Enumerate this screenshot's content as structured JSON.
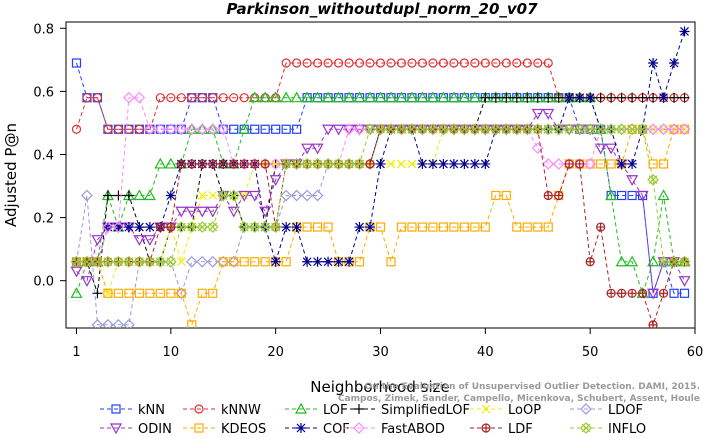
{
  "chart_data": {
    "type": "line",
    "title": "Parkinson_withoutdupl_norm_20_v07",
    "xlabel": "Neighborhood size",
    "ylabel": "Adjusted P@n",
    "xlim": [
      0,
      60
    ],
    "ylim": [
      -0.15,
      0.82
    ],
    "xticks": [
      1,
      10,
      20,
      30,
      40,
      50,
      60
    ],
    "yticks": [
      0.0,
      0.2,
      0.4,
      0.6,
      0.8
    ],
    "grid": false,
    "legend_position": "bottom",
    "watermark": [
      "Campos, Zimek, Sander, Campello, Micenkova, Schubert, Assent, Houle",
      "On the Evaluation of Unsupervised Outlier Detection. DAMI, 2015."
    ],
    "x": [
      1,
      2,
      3,
      4,
      5,
      6,
      7,
      8,
      9,
      10,
      11,
      12,
      13,
      14,
      15,
      16,
      17,
      18,
      19,
      20,
      21,
      22,
      23,
      24,
      25,
      26,
      27,
      28,
      29,
      30,
      31,
      32,
      33,
      34,
      35,
      36,
      37,
      38,
      39,
      40,
      41,
      42,
      43,
      44,
      45,
      46,
      47,
      48,
      49,
      50,
      51,
      52,
      53,
      54,
      55,
      56,
      57,
      58,
      59
    ],
    "series": [
      {
        "name": "kNN",
        "color": "#1f3fff",
        "marker": "square",
        "values": [
          0.69,
          0.58,
          0.58,
          0.48,
          0.48,
          0.48,
          0.48,
          0.48,
          0.48,
          0.48,
          0.48,
          0.58,
          0.58,
          0.58,
          0.48,
          0.48,
          0.48,
          0.48,
          0.48,
          0.48,
          0.48,
          0.48,
          0.58,
          0.58,
          0.58,
          0.58,
          0.58,
          0.58,
          0.58,
          0.58,
          0.58,
          0.58,
          0.58,
          0.58,
          0.58,
          0.58,
          0.58,
          0.58,
          0.58,
          0.58,
          0.58,
          0.58,
          0.58,
          0.58,
          0.58,
          0.58,
          0.58,
          0.58,
          0.48,
          0.48,
          0.48,
          0.27,
          0.27,
          0.27,
          0.27,
          -0.04,
          0.06,
          -0.04,
          -0.04
        ]
      },
      {
        "name": "kNNW",
        "color": "#e03030",
        "marker": "circle",
        "values": [
          0.48,
          0.58,
          0.58,
          0.48,
          0.48,
          0.48,
          0.48,
          0.48,
          0.58,
          0.58,
          0.58,
          0.58,
          0.58,
          0.58,
          0.58,
          0.58,
          0.58,
          0.58,
          0.58,
          0.58,
          0.69,
          0.69,
          0.69,
          0.69,
          0.69,
          0.69,
          0.69,
          0.69,
          0.69,
          0.69,
          0.69,
          0.69,
          0.69,
          0.69,
          0.69,
          0.69,
          0.69,
          0.69,
          0.69,
          0.69,
          0.69,
          0.69,
          0.69,
          0.69,
          0.69,
          0.69,
          0.58,
          0.58,
          0.58,
          0.58,
          0.58,
          0.58,
          0.58,
          0.58,
          0.58,
          0.58,
          0.58,
          0.58,
          0.58
        ]
      },
      {
        "name": "LOF",
        "color": "#22bb22",
        "marker": "triangle-up",
        "values": [
          -0.04,
          0.06,
          0.06,
          0.27,
          0.17,
          0.27,
          0.27,
          0.27,
          0.37,
          0.37,
          0.37,
          0.48,
          0.48,
          0.48,
          0.37,
          0.37,
          0.48,
          0.58,
          0.58,
          0.58,
          0.58,
          0.58,
          0.58,
          0.58,
          0.58,
          0.58,
          0.58,
          0.58,
          0.58,
          0.58,
          0.58,
          0.58,
          0.58,
          0.58,
          0.58,
          0.58,
          0.58,
          0.58,
          0.58,
          0.58,
          0.58,
          0.58,
          0.58,
          0.58,
          0.58,
          0.58,
          0.58,
          0.58,
          0.58,
          0.58,
          0.48,
          0.27,
          0.06,
          0.06,
          -0.04,
          0.06,
          0.27,
          0.06,
          0.06
        ]
      },
      {
        "name": "SimplifiedLOF",
        "color": "#000000",
        "marker": "plus",
        "values": [
          0.06,
          0.06,
          -0.04,
          0.27,
          0.27,
          0.27,
          0.17,
          0.06,
          0.06,
          0.17,
          0.17,
          0.17,
          0.37,
          0.37,
          0.27,
          0.27,
          0.17,
          0.17,
          0.17,
          0.37,
          0.37,
          0.37,
          0.37,
          0.37,
          0.37,
          0.37,
          0.37,
          0.37,
          0.37,
          0.48,
          0.48,
          0.48,
          0.48,
          0.48,
          0.48,
          0.48,
          0.48,
          0.48,
          0.48,
          0.58,
          0.58,
          0.58,
          0.58,
          0.58,
          0.58,
          0.58,
          0.58,
          0.58,
          0.58,
          0.58,
          0.58,
          0.58,
          0.58,
          0.58,
          0.58,
          0.58,
          0.58,
          0.58,
          0.58
        ]
      },
      {
        "name": "LoOP",
        "color": "#eeee00",
        "marker": "x",
        "values": [
          0.06,
          0.06,
          0.06,
          -0.04,
          0.06,
          0.06,
          0.06,
          0.06,
          0.06,
          0.17,
          0.06,
          0.17,
          0.27,
          0.27,
          0.27,
          0.27,
          0.27,
          0.37,
          0.37,
          0.37,
          0.37,
          0.37,
          0.37,
          0.37,
          0.37,
          0.37,
          0.37,
          0.37,
          0.37,
          0.37,
          0.37,
          0.37,
          0.37,
          0.37,
          0.37,
          0.48,
          0.48,
          0.48,
          0.48,
          0.48,
          0.48,
          0.48,
          0.48,
          0.48,
          0.48,
          0.48,
          0.48,
          0.48,
          0.48,
          0.48,
          0.48,
          0.48,
          0.48,
          0.48,
          0.48,
          0.48,
          0.48,
          0.48,
          0.48
        ]
      },
      {
        "name": "LDOF",
        "color": "#9999dd",
        "marker": "diamond",
        "values": [
          0.06,
          0.27,
          -0.14,
          -0.14,
          -0.14,
          -0.14,
          0.06,
          0.06,
          0.06,
          0.06,
          -0.04,
          0.06,
          0.06,
          0.06,
          0.06,
          0.06,
          0.17,
          0.17,
          0.17,
          0.17,
          0.27,
          0.27,
          0.27,
          0.27,
          0.37,
          0.37,
          0.37,
          0.37,
          0.37,
          0.48,
          0.48,
          0.48,
          0.48,
          0.48,
          0.48,
          0.48,
          0.48,
          0.48,
          0.48,
          0.48,
          0.48,
          0.48,
          0.48,
          0.48,
          0.48,
          0.48,
          0.48,
          0.48,
          0.48,
          0.48,
          0.48,
          0.48,
          0.48,
          0.48,
          0.48,
          0.48,
          0.48,
          0.48,
          0.48
        ]
      },
      {
        "name": "ODIN",
        "color": "#9933cc",
        "marker": "triangle-down",
        "values": [
          0.03,
          0.0,
          0.13,
          0.17,
          0.17,
          0.17,
          0.13,
          0.13,
          0.17,
          0.17,
          0.22,
          0.22,
          0.22,
          0.22,
          0.27,
          0.22,
          0.27,
          0.27,
          0.22,
          0.32,
          0.37,
          0.37,
          0.42,
          0.42,
          0.48,
          0.48,
          0.48,
          0.48,
          0.48,
          0.48,
          0.48,
          0.48,
          0.48,
          0.48,
          0.48,
          0.48,
          0.48,
          0.48,
          0.48,
          0.48,
          0.48,
          0.48,
          0.48,
          0.48,
          0.53,
          0.53,
          0.48,
          0.48,
          0.48,
          0.48,
          0.42,
          0.42,
          0.37,
          0.32,
          0.27,
          -0.04,
          0.06,
          0.06,
          0.0
        ]
      },
      {
        "name": "KDEOS",
        "color": "#ffaa00",
        "marker": "square",
        "values": [
          0.06,
          0.06,
          0.06,
          -0.04,
          -0.04,
          -0.04,
          -0.04,
          -0.04,
          -0.04,
          -0.04,
          -0.04,
          -0.14,
          -0.04,
          -0.04,
          0.06,
          0.06,
          0.06,
          0.06,
          0.06,
          0.06,
          0.06,
          0.17,
          0.17,
          0.17,
          0.17,
          0.06,
          0.06,
          0.06,
          0.17,
          0.17,
          0.06,
          0.17,
          0.17,
          0.17,
          0.17,
          0.17,
          0.17,
          0.17,
          0.17,
          0.17,
          0.27,
          0.27,
          0.17,
          0.17,
          0.17,
          0.17,
          0.27,
          0.37,
          0.37,
          0.37,
          0.37,
          0.37,
          0.37,
          0.48,
          0.48,
          0.37,
          0.37,
          0.48,
          0.48
        ]
      },
      {
        "name": "COF",
        "color": "#00008b",
        "marker": "asterisk",
        "values": [
          0.06,
          0.06,
          0.06,
          0.17,
          0.17,
          0.17,
          0.17,
          0.17,
          0.17,
          0.27,
          0.37,
          0.37,
          0.37,
          0.37,
          0.37,
          0.37,
          0.37,
          0.37,
          0.17,
          0.06,
          0.17,
          0.17,
          0.06,
          0.06,
          0.06,
          0.06,
          0.06,
          0.17,
          0.17,
          0.37,
          0.48,
          0.48,
          0.48,
          0.37,
          0.37,
          0.37,
          0.37,
          0.37,
          0.37,
          0.37,
          0.48,
          0.48,
          0.48,
          0.48,
          0.48,
          0.48,
          0.48,
          0.58,
          0.58,
          0.58,
          0.48,
          0.48,
          0.37,
          0.37,
          0.48,
          0.69,
          0.58,
          0.69,
          0.79
        ]
      },
      {
        "name": "FastABOD",
        "color": "#ff88ff",
        "marker": "diamond",
        "values": [
          0.06,
          0.06,
          0.06,
          0.17,
          0.17,
          0.58,
          0.58,
          0.48,
          0.48,
          0.48,
          0.48,
          0.48,
          0.48,
          0.48,
          0.48,
          0.37,
          0.37,
          0.37,
          0.37,
          0.37,
          0.37,
          0.37,
          0.37,
          0.37,
          0.37,
          0.37,
          0.48,
          0.48,
          0.48,
          0.48,
          0.48,
          0.48,
          0.48,
          0.48,
          0.48,
          0.48,
          0.48,
          0.48,
          0.48,
          0.48,
          0.48,
          0.48,
          0.48,
          0.48,
          0.42,
          0.37,
          0.37,
          0.37,
          0.37,
          0.37,
          0.48,
          0.48,
          0.48,
          0.48,
          0.48,
          0.48,
          0.48,
          0.48,
          0.48
        ]
      },
      {
        "name": "LDF",
        "color": "#aa2222",
        "marker": "circle-plus",
        "values": [
          0.06,
          0.06,
          0.06,
          0.06,
          0.06,
          0.06,
          0.06,
          0.06,
          0.17,
          0.17,
          0.37,
          0.37,
          0.37,
          0.37,
          0.37,
          0.37,
          0.37,
          0.37,
          0.37,
          0.17,
          0.37,
          0.37,
          0.37,
          0.37,
          0.37,
          0.37,
          0.37,
          0.37,
          0.37,
          0.48,
          0.48,
          0.48,
          0.48,
          0.48,
          0.48,
          0.48,
          0.48,
          0.48,
          0.48,
          0.48,
          0.48,
          0.48,
          0.48,
          0.48,
          0.48,
          0.27,
          0.27,
          0.37,
          0.37,
          0.06,
          0.17,
          -0.04,
          -0.04,
          -0.04,
          -0.04,
          -0.14,
          -0.04,
          0.06,
          0.06
        ]
      },
      {
        "name": "INFLO",
        "color": "#99cc33",
        "marker": "star",
        "values": [
          0.06,
          0.06,
          0.06,
          0.06,
          0.06,
          0.06,
          0.06,
          0.06,
          0.06,
          0.06,
          0.17,
          0.17,
          0.17,
          0.17,
          0.27,
          0.27,
          0.17,
          0.17,
          0.17,
          0.17,
          0.37,
          0.37,
          0.37,
          0.37,
          0.37,
          0.37,
          0.37,
          0.37,
          0.48,
          0.48,
          0.48,
          0.48,
          0.48,
          0.48,
          0.48,
          0.48,
          0.48,
          0.48,
          0.48,
          0.48,
          0.48,
          0.48,
          0.48,
          0.48,
          0.48,
          0.48,
          0.48,
          0.48,
          0.48,
          0.48,
          0.48,
          0.48,
          0.48,
          0.48,
          0.48,
          0.32,
          0.06,
          0.06,
          0.06
        ]
      }
    ]
  }
}
